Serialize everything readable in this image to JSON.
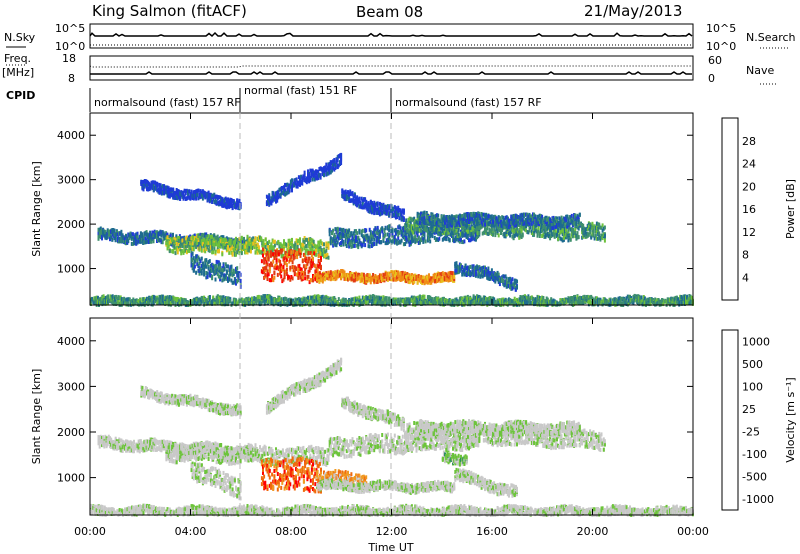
{
  "header": {
    "station": "King Salmon (fitACF)",
    "beam": "Beam 08",
    "date": "21/May/2013"
  },
  "status": {
    "left_top_label": "N.Sky",
    "left_top_ticks": [
      "10^5",
      "10^0"
    ],
    "right_top_label": "N.Search",
    "right_top_ticks": [
      "10^5",
      "10^0"
    ],
    "freq_label": "Freq.",
    "freq_unit": "[MHz]",
    "freq_ticks": [
      "18",
      "8"
    ],
    "nave_label": "Nave",
    "nave_ticks": [
      "60",
      "0"
    ],
    "cpid_label": "CPID",
    "cpid_segments": [
      {
        "label": "normalsound (fast) 157 RF",
        "start_h": 0,
        "end_h": 6
      },
      {
        "label": "normal (fast) 151 RF",
        "start_h": 6,
        "end_h": 12
      },
      {
        "label": "normalsound (fast) 157 RF",
        "start_h": 12,
        "end_h": 24
      }
    ]
  },
  "x_axis": {
    "label": "Time UT",
    "ticks": [
      "00:00",
      "04:00",
      "08:00",
      "12:00",
      "16:00",
      "20:00",
      "00:00"
    ]
  },
  "chart_data": [
    {
      "type": "heatmap",
      "name": "power",
      "ylabel": "Slant Range [km]",
      "yticks": [
        "1000",
        "2000",
        "3000",
        "4000"
      ],
      "ylim": [
        180,
        4500
      ],
      "xlim_hours": [
        0,
        24
      ],
      "colorbar_label": "Power [dB]",
      "colorbar_ticks": [
        "4",
        "8",
        "12",
        "16",
        "20",
        "24",
        "28"
      ],
      "colors": [
        "#1f3bd6",
        "#1d6b8f",
        "#3e8f6e",
        "#6dc13c",
        "#e8c21d",
        "#f08a16",
        "#e23a12",
        "#ff0000"
      ],
      "bands": [
        {
          "h0": 0.3,
          "h1": 6.5,
          "r0": 1800,
          "r1": 1600,
          "w": 120,
          "lvl": 1
        },
        {
          "h0": 3.0,
          "h1": 9.5,
          "r0": 1600,
          "r1": 1500,
          "w": 180,
          "lvl": 3
        },
        {
          "h0": 6.8,
          "h1": 9.2,
          "r0": 1150,
          "r1": 1050,
          "w": 350,
          "lvl": 6
        },
        {
          "h0": 9.0,
          "h1": 14.5,
          "r0": 870,
          "r1": 820,
          "w": 90,
          "lvl": 5
        },
        {
          "h0": 9.5,
          "h1": 15.5,
          "r0": 1700,
          "r1": 1900,
          "w": 200,
          "lvl": 1
        },
        {
          "h0": 12.5,
          "h1": 20.5,
          "r0": 2050,
          "r1": 1850,
          "w": 180,
          "lvl": 2
        },
        {
          "h0": 13.0,
          "h1": 19.5,
          "r0": 2150,
          "r1": 2100,
          "w": 120,
          "lvl": 1
        },
        {
          "h0": 2.0,
          "h1": 6.0,
          "r0": 2900,
          "r1": 2500,
          "w": 100,
          "lvl": 0
        },
        {
          "h0": 7.0,
          "h1": 10.0,
          "r0": 2600,
          "r1": 3500,
          "w": 120,
          "lvl": 0
        },
        {
          "h0": 10.0,
          "h1": 12.5,
          "r0": 2700,
          "r1": 2200,
          "w": 120,
          "lvl": 0
        },
        {
          "h0": 4.0,
          "h1": 6.0,
          "r0": 1200,
          "r1": 800,
          "w": 200,
          "lvl": 1
        },
        {
          "h0": 14.5,
          "h1": 17.0,
          "r0": 1100,
          "r1": 700,
          "w": 120,
          "lvl": 1
        },
        {
          "h0": 0.0,
          "h1": 24.0,
          "r0": 300,
          "r1": 300,
          "w": 90,
          "lvl": 2
        }
      ]
    },
    {
      "type": "heatmap",
      "name": "velocity",
      "ylabel": "Slant Range [km]",
      "yticks": [
        "1000",
        "2000",
        "3000",
        "4000"
      ],
      "ylim": [
        180,
        4500
      ],
      "xlim_hours": [
        0,
        24
      ],
      "colorbar_label": "Velocity [m s⁻¹]",
      "colorbar_ticks": [
        "1000",
        "500",
        "100",
        "25",
        "-25",
        "-100",
        "-500",
        "-1000"
      ],
      "colors": [
        "#1f3bd6",
        "#2e8c64",
        "#6cc43a",
        "#c9c9c9",
        "#c9c9c9",
        "#f09a22",
        "#f06a0e",
        "#ff0000"
      ],
      "bands": [
        {
          "h0": 0.3,
          "h1": 6.5,
          "r0": 1800,
          "r1": 1600,
          "w": 120,
          "lvl": 3
        },
        {
          "h0": 3.0,
          "h1": 9.5,
          "r0": 1600,
          "r1": 1500,
          "w": 180,
          "lvl": 3
        },
        {
          "h0": 6.8,
          "h1": 9.2,
          "r0": 1150,
          "r1": 1050,
          "w": 350,
          "lvl": 6
        },
        {
          "h0": 9.0,
          "h1": 11.0,
          "r0": 1050,
          "r1": 950,
          "w": 150,
          "lvl": 5
        },
        {
          "h0": 9.0,
          "h1": 14.5,
          "r0": 870,
          "r1": 820,
          "w": 90,
          "lvl": 3
        },
        {
          "h0": 9.5,
          "h1": 15.5,
          "r0": 1700,
          "r1": 1900,
          "w": 200,
          "lvl": 3
        },
        {
          "h0": 12.5,
          "h1": 20.5,
          "r0": 2050,
          "r1": 1850,
          "w": 180,
          "lvl": 3
        },
        {
          "h0": 13.0,
          "h1": 19.5,
          "r0": 2150,
          "r1": 2100,
          "w": 120,
          "lvl": 3
        },
        {
          "h0": 2.0,
          "h1": 6.0,
          "r0": 2900,
          "r1": 2500,
          "w": 100,
          "lvl": 3
        },
        {
          "h0": 7.0,
          "h1": 10.0,
          "r0": 2600,
          "r1": 3500,
          "w": 120,
          "lvl": 3
        },
        {
          "h0": 10.0,
          "h1": 12.5,
          "r0": 2700,
          "r1": 2200,
          "w": 120,
          "lvl": 3
        },
        {
          "h0": 14.0,
          "h1": 15.0,
          "r0": 1500,
          "r1": 1450,
          "w": 100,
          "lvl": 2
        },
        {
          "h0": 4.0,
          "h1": 6.0,
          "r0": 1200,
          "r1": 800,
          "w": 200,
          "lvl": 3
        },
        {
          "h0": 14.5,
          "h1": 17.0,
          "r0": 1100,
          "r1": 700,
          "w": 120,
          "lvl": 3
        },
        {
          "h0": 0.0,
          "h1": 24.0,
          "r0": 300,
          "r1": 300,
          "w": 90,
          "lvl": 3
        }
      ]
    }
  ]
}
